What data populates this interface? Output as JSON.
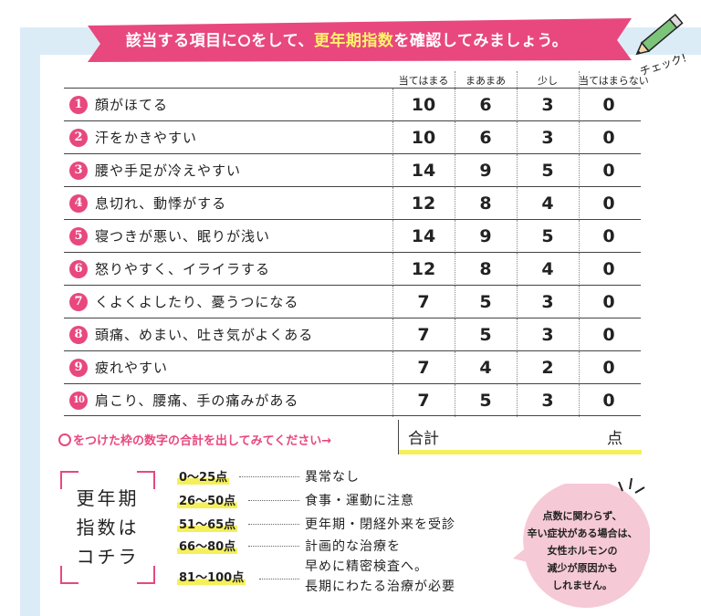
{
  "banner": {
    "text_before": "該当する項目に",
    "text_mid": "をして、",
    "text_em": "更年期指数",
    "text_after": "を確認してみましょう。"
  },
  "check_label": "チェック!",
  "columns": [
    "当てはまる",
    "まあまあ",
    "少し",
    "当てはまらない"
  ],
  "rows": [
    {
      "num": "1",
      "text": "顔がほてる",
      "scores": [
        "10",
        "6",
        "3",
        "0"
      ]
    },
    {
      "num": "2",
      "text": "汗をかきやすい",
      "scores": [
        "10",
        "6",
        "3",
        "0"
      ]
    },
    {
      "num": "3",
      "text": "腰や手足が冷えやすい",
      "scores": [
        "14",
        "9",
        "5",
        "0"
      ]
    },
    {
      "num": "4",
      "text": "息切れ、動悸がする",
      "scores": [
        "12",
        "8",
        "4",
        "0"
      ]
    },
    {
      "num": "5",
      "text": "寝つきが悪い、眠りが浅い",
      "scores": [
        "14",
        "9",
        "5",
        "0"
      ]
    },
    {
      "num": "6",
      "text": "怒りやすく、イライラする",
      "scores": [
        "12",
        "8",
        "4",
        "0"
      ]
    },
    {
      "num": "7",
      "text": "くよくよしたり、憂うつになる",
      "scores": [
        "7",
        "5",
        "3",
        "0"
      ]
    },
    {
      "num": "8",
      "text": "頭痛、めまい、吐き気がよくある",
      "scores": [
        "7",
        "5",
        "3",
        "0"
      ]
    },
    {
      "num": "9",
      "text": "疲れやすい",
      "scores": [
        "7",
        "4",
        "2",
        "0"
      ]
    },
    {
      "num": "10",
      "text": "肩こり、腰痛、手の痛みがある",
      "scores": [
        "7",
        "5",
        "3",
        "0"
      ]
    }
  ],
  "instruction": "をつけた枠の数字の合計を出してみてください→",
  "total": {
    "label": "合計",
    "unit": "点"
  },
  "index_title": [
    "更年期",
    "指数は",
    "コチラ"
  ],
  "ranges": [
    {
      "range": "0〜25点",
      "result": "異常なし"
    },
    {
      "range": "26〜50点",
      "result": "食事・運動に注意"
    },
    {
      "range": "51〜65点",
      "result": "更年期・閉経外来を受診"
    },
    {
      "range": "66〜80点",
      "result": "計画的な治療を"
    },
    {
      "range": "",
      "result": "早めに精密検査へ。"
    },
    {
      "range": "81〜100点",
      "result": "長期にわたる治療が必要"
    }
  ],
  "bubble_lines": [
    "点数に関わらず、",
    "辛い症状がある場合は、",
    "女性ホルモンの",
    "減少が原因かも",
    "しれません。"
  ],
  "colors": {
    "accent": "#e8487d",
    "highlight": "#f5f05a",
    "background": "#dcecf7"
  }
}
